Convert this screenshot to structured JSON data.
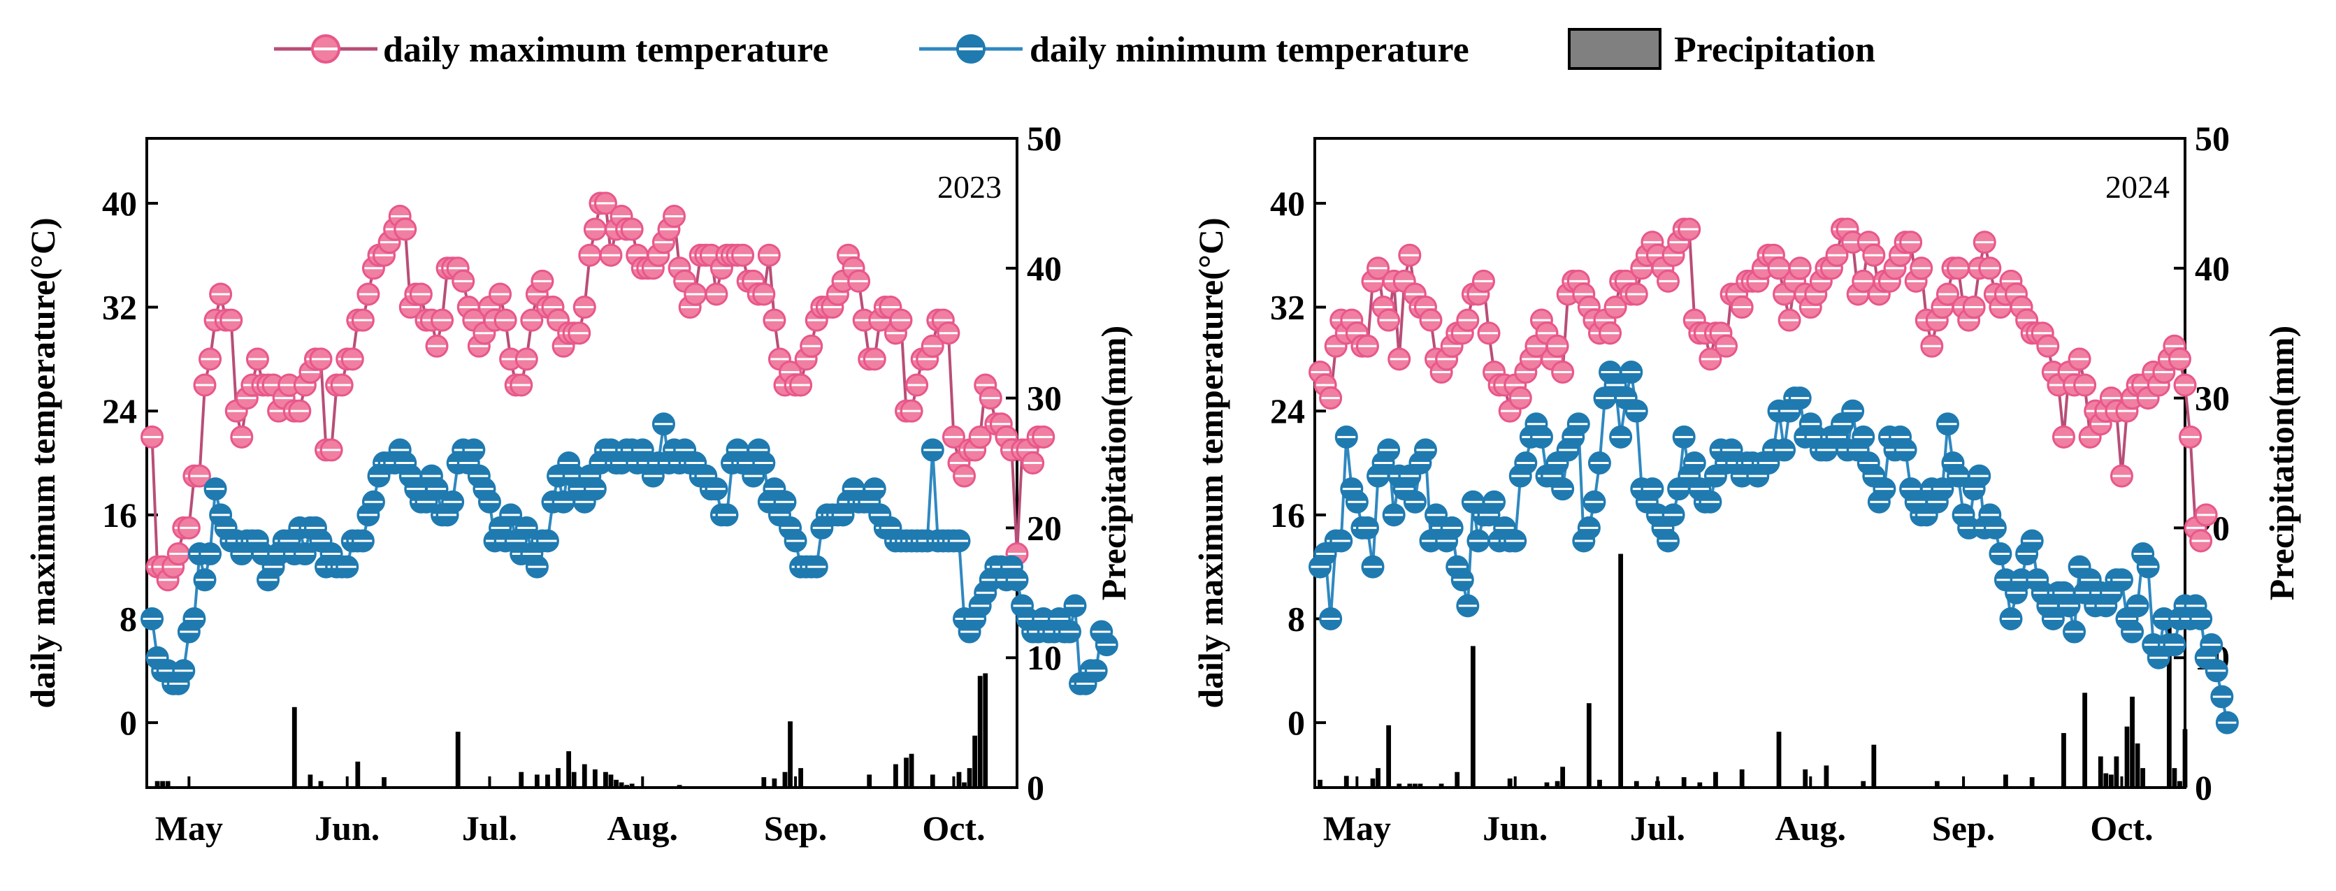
{
  "legend": {
    "max_label": "daily maximum temperature",
    "min_label": "daily minimum temperature",
    "precip_label": "Precipitation"
  },
  "colors": {
    "max": "#e8578a",
    "max_fill": "#f07fa2",
    "max_line": "#b84e78",
    "min": "#1f7ab0",
    "min_line": "#2f88c0",
    "precip": "#000000",
    "legend_precip_fill": "#808080"
  },
  "chart_data": [
    {
      "type": "line",
      "title": "2023",
      "ylabel": "daily maximum temperature(°C)",
      "y2label": "Precipitation(mm)",
      "ylim": [
        -5,
        45
      ],
      "y2lim": [
        0,
        50
      ],
      "yticks": [
        0,
        8,
        16,
        24,
        32,
        40
      ],
      "y2ticks": [
        0,
        10,
        20,
        30,
        40,
        50
      ],
      "xlim": [
        0,
        165
      ],
      "xticks": [
        {
          "pos": 8,
          "label": "May"
        },
        {
          "pos": 38,
          "label": "Jun."
        },
        {
          "pos": 65,
          "label": "Jul."
        },
        {
          "pos": 94,
          "label": "Aug."
        },
        {
          "pos": 123,
          "label": "Sep."
        },
        {
          "pos": 153,
          "label": "Oct."
        }
      ],
      "series": [
        {
          "name": "daily maximum temperature",
          "axis": "left",
          "x_start": 1,
          "values": [
            22,
            12,
            12,
            11,
            12,
            13,
            15,
            15,
            19,
            19,
            26,
            28,
            31,
            33,
            31,
            31,
            24,
            22,
            25,
            26,
            28,
            26,
            26,
            26,
            24,
            25,
            26,
            24,
            24,
            26,
            27,
            28,
            28,
            21,
            21,
            26,
            26,
            28,
            28,
            31,
            31,
            33,
            35,
            36,
            36,
            37,
            38,
            39,
            38,
            32,
            33,
            33,
            31,
            31,
            29,
            31,
            35,
            35,
            35,
            34,
            32,
            31,
            29,
            30,
            32,
            31,
            33,
            31,
            28,
            26,
            26,
            28,
            31,
            33,
            34,
            32,
            32,
            31,
            29,
            30,
            30,
            30,
            32,
            36,
            38,
            40,
            40,
            36,
            38,
            39,
            38,
            38,
            36,
            35,
            35,
            35,
            36,
            37,
            38,
            39,
            35,
            34,
            32,
            33,
            36,
            36,
            36,
            33,
            35,
            36,
            36,
            36,
            36,
            34,
            34,
            33,
            33,
            36,
            31,
            28,
            26,
            27,
            26,
            26,
            28,
            29,
            31,
            32,
            32,
            32,
            33,
            34,
            36,
            35,
            34,
            31,
            28,
            28,
            31,
            32,
            32,
            30,
            31,
            24,
            24,
            26,
            28,
            28,
            29,
            31,
            31,
            30,
            22,
            20,
            19,
            21,
            21,
            22,
            26,
            25,
            23,
            23,
            22,
            21,
            13,
            21,
            21,
            20,
            22,
            22
          ]
        },
        {
          "name": "daily minimum temperature",
          "axis": "left",
          "x_start": 1,
          "values": [
            8,
            5,
            4,
            4,
            3,
            3,
            4,
            7,
            8,
            13,
            11,
            13,
            18,
            16,
            15,
            14,
            14,
            13,
            14,
            14,
            14,
            13,
            11,
            12,
            13,
            14,
            14,
            13,
            15,
            13,
            15,
            15,
            14,
            12,
            13,
            12,
            12,
            12,
            14,
            14,
            14,
            16,
            17,
            19,
            20,
            20,
            20,
            21,
            20,
            19,
            18,
            17,
            17,
            19,
            18,
            16,
            16,
            17,
            20,
            21,
            20,
            21,
            19,
            18,
            17,
            14,
            15,
            14,
            16,
            14,
            13,
            15,
            13,
            12,
            14,
            14,
            17,
            19,
            17,
            20,
            19,
            18,
            17,
            19,
            18,
            20,
            21,
            21,
            20,
            20,
            21,
            21,
            20,
            21,
            20,
            19,
            20,
            23,
            20,
            21,
            20,
            21,
            20,
            20,
            19,
            19,
            18,
            18,
            16,
            16,
            20,
            21,
            20,
            20,
            19,
            21,
            20,
            17,
            18,
            16,
            17,
            15,
            14,
            12,
            12,
            12,
            12,
            15,
            16,
            16,
            16,
            16,
            17,
            18,
            17,
            17,
            17,
            18,
            16,
            15,
            15,
            14,
            14,
            14,
            14,
            14,
            14,
            14,
            21,
            14,
            14,
            14,
            14,
            14,
            8,
            7,
            8,
            9,
            10,
            11,
            12,
            12,
            11,
            12,
            11,
            9,
            8,
            7,
            7,
            8,
            7,
            7,
            8,
            7,
            7,
            9,
            3,
            3,
            4,
            4,
            7,
            6
          ]
        },
        {
          "name": "Precipitation",
          "type": "bar",
          "axis": "right",
          "x": [
            2,
            3,
            4,
            28,
            31,
            33,
            40,
            45,
            59,
            71,
            74,
            76,
            78,
            80,
            81,
            83,
            85,
            87,
            88,
            89,
            90,
            91,
            92,
            101,
            117,
            119,
            121,
            122,
            124,
            128,
            137,
            142,
            144,
            145,
            149,
            154,
            155,
            156,
            157,
            158,
            159
          ],
          "values": [
            0.5,
            0.5,
            0.5,
            6.2,
            1,
            0.5,
            2,
            0.8,
            4.3,
            1.2,
            1,
            1,
            1.5,
            2.8,
            1.2,
            1.8,
            1.4,
            1.2,
            1,
            0.6,
            0.4,
            0.2,
            0.3,
            0.2,
            0.8,
            0.7,
            1.2,
            5.1,
            1.5,
            0.1,
            1,
            1.8,
            2.3,
            2.6,
            1,
            1.2,
            0.4,
            1.5,
            4,
            8.6,
            8.8
          ]
        }
      ]
    },
    {
      "type": "line",
      "title": "2024",
      "ylabel": "daily maximum temperature(°C)",
      "y2label": "Precipitation(mm)",
      "ylim": [
        -5,
        45
      ],
      "y2lim": [
        0,
        50
      ],
      "yticks": [
        0,
        8,
        16,
        24,
        32,
        40
      ],
      "y2ticks": [
        0,
        10,
        20,
        30,
        40,
        50
      ],
      "xlim": [
        0,
        165
      ],
      "xticks": [
        {
          "pos": 8,
          "label": "May"
        },
        {
          "pos": 38,
          "label": "Jun."
        },
        {
          "pos": 65,
          "label": "Jul."
        },
        {
          "pos": 94,
          "label": "Aug."
        },
        {
          "pos": 123,
          "label": "Sep."
        },
        {
          "pos": 153,
          "label": "Oct."
        }
      ],
      "series": [
        {
          "name": "daily maximum temperature",
          "axis": "left",
          "x_start": 1,
          "values": [
            27,
            26,
            25,
            29,
            31,
            30,
            31,
            30,
            29,
            29,
            34,
            35,
            32,
            31,
            34,
            28,
            34,
            36,
            33,
            32,
            32,
            31,
            28,
            27,
            28,
            29,
            30,
            30,
            31,
            33,
            33,
            34,
            30,
            27,
            26,
            26,
            24,
            26,
            25,
            27,
            28,
            29,
            31,
            30,
            28,
            29,
            27,
            33,
            34,
            34,
            33,
            32,
            31,
            30,
            31,
            30,
            32,
            34,
            34,
            33,
            33,
            35,
            36,
            37,
            36,
            35,
            34,
            36,
            37,
            38,
            38,
            31,
            30,
            30,
            28,
            30,
            30,
            29,
            33,
            33,
            32,
            34,
            34,
            34,
            35,
            36,
            36,
            35,
            33,
            31,
            34,
            35,
            33,
            32,
            33,
            34,
            35,
            35,
            36,
            38,
            38,
            37,
            33,
            34,
            37,
            36,
            33,
            34,
            34,
            35,
            36,
            37,
            37,
            34,
            35,
            31,
            29,
            31,
            32,
            33,
            35,
            35,
            32,
            31,
            32,
            35,
            37,
            35,
            33,
            32,
            33,
            34,
            33,
            32,
            31,
            30,
            30,
            30,
            29,
            27,
            26,
            22,
            27,
            26,
            28,
            26,
            22,
            24,
            23,
            24,
            25,
            24,
            19,
            24,
            25,
            26,
            26,
            25,
            27,
            26,
            27,
            28,
            29,
            28,
            26,
            22,
            15,
            14,
            16
          ]
        },
        {
          "name": "daily minimum temperature",
          "axis": "left",
          "x_start": 1,
          "values": [
            12,
            13,
            8,
            14,
            14,
            22,
            18,
            17,
            15,
            15,
            12,
            19,
            20,
            21,
            16,
            19,
            18,
            19,
            17,
            20,
            21,
            14,
            16,
            15,
            14,
            15,
            12,
            11,
            9,
            17,
            14,
            16,
            16,
            17,
            14,
            15,
            14,
            14,
            19,
            20,
            22,
            23,
            22,
            19,
            19,
            20,
            18,
            21,
            22,
            23,
            14,
            15,
            17,
            20,
            25,
            27,
            26,
            22,
            25,
            27,
            24,
            18,
            17,
            18,
            16,
            15,
            14,
            16,
            18,
            22,
            19,
            20,
            18,
            17,
            17,
            19,
            21,
            20,
            21,
            20,
            19,
            20,
            20,
            19,
            20,
            20,
            21,
            24,
            21,
            24,
            25,
            25,
            22,
            23,
            22,
            21,
            21,
            22,
            22,
            23,
            21,
            24,
            21,
            22,
            20,
            19,
            17,
            18,
            22,
            21,
            22,
            21,
            18,
            17,
            16,
            16,
            18,
            17,
            18,
            23,
            20,
            19,
            16,
            15,
            18,
            19,
            15,
            16,
            15,
            13,
            11,
            8,
            10,
            11,
            13,
            14,
            11,
            10,
            9,
            8,
            10,
            10,
            9,
            7,
            12,
            10,
            11,
            9,
            10,
            9,
            10,
            11,
            11,
            8,
            7,
            9,
            13,
            12,
            6,
            5,
            8,
            6,
            6,
            8,
            9,
            8,
            9,
            8,
            5,
            6,
            4,
            2,
            0
          ]
        },
        {
          "name": "Precipitation",
          "type": "bar",
          "axis": "right",
          "x": [
            1,
            6,
            11,
            12,
            14,
            16,
            18,
            19,
            20,
            24,
            27,
            30,
            37,
            44,
            46,
            47,
            52,
            54,
            58,
            61,
            65,
            70,
            73,
            76,
            81,
            88,
            93,
            97,
            104,
            106,
            118,
            131,
            136,
            142,
            146,
            149,
            150,
            151,
            152,
            154,
            155,
            156,
            157,
            162,
            163,
            164,
            165
          ],
          "values": [
            0.6,
            0.9,
            0.7,
            1.5,
            4.8,
            0.3,
            0.3,
            0.3,
            0.3,
            0.3,
            1.2,
            10.9,
            0.7,
            0.4,
            0.5,
            1.6,
            6.5,
            0.6,
            18,
            0.5,
            0.5,
            0.8,
            0.4,
            1.2,
            1.4,
            4.3,
            1.4,
            1.7,
            0.5,
            3.3,
            0.5,
            1,
            0.8,
            4.2,
            7.3,
            2.4,
            1.1,
            1,
            2.4,
            4.7,
            7,
            3.4,
            1.5,
            13.2,
            1.5,
            0.5,
            4.5
          ]
        }
      ]
    }
  ]
}
